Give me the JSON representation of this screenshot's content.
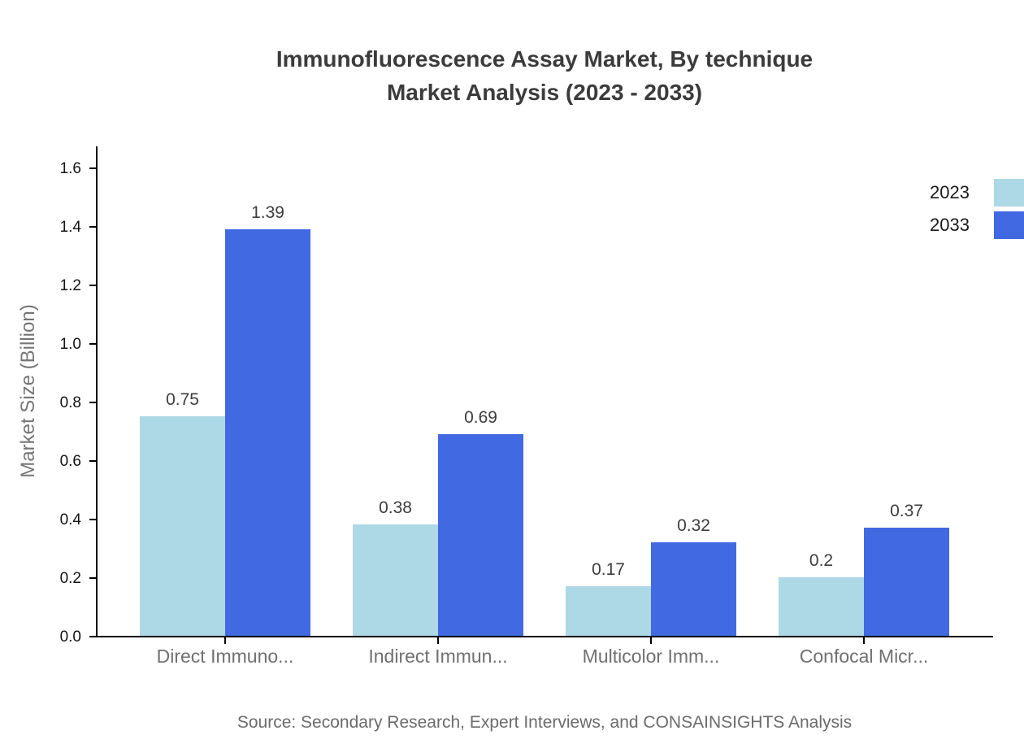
{
  "chart_data": {
    "type": "bar",
    "title_line1": "Immunofluorescence Assay Market, By technique",
    "title_line2": "Market Analysis (2023 - 2033)",
    "ylabel": "Market Size (Billion)",
    "ylim": [
      0,
      1.6
    ],
    "ytick_labels": [
      "0.0",
      "0.2",
      "0.4",
      "0.6",
      "0.8",
      "1.0",
      "1.2",
      "1.4",
      "1.6"
    ],
    "grid": false,
    "legend_position": "right",
    "categories": [
      "Direct Immuno...",
      "Indirect Immun...",
      "Multicolor Imm...",
      "Confocal Micr..."
    ],
    "series": [
      {
        "name": "2023",
        "color": "#ADD8E6",
        "values": [
          0.75,
          0.38,
          0.17,
          0.2
        ],
        "value_labels": [
          "0.75",
          "0.38",
          "0.17",
          "0.2"
        ]
      },
      {
        "name": "2033",
        "color": "#4169E1",
        "values": [
          1.39,
          0.69,
          0.32,
          0.37
        ],
        "value_labels": [
          "1.39",
          "0.69",
          "0.32",
          "0.37"
        ]
      }
    ],
    "source": "Source: Secondary Research, Expert Interviews, and CONSAINSIGHTS Analysis"
  }
}
